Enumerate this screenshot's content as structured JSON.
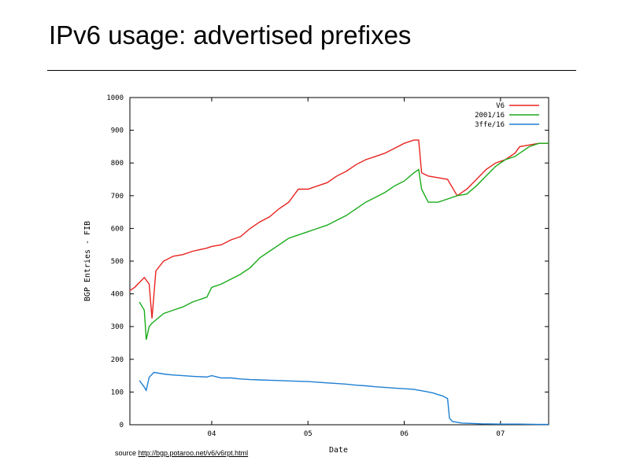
{
  "slide": {
    "title": "IPv6 usage: advertised prefixes",
    "source_prefix": "source ",
    "source_url": "http://bgp.potaroo.net/v6/v6rpt.html"
  },
  "chart_data": {
    "type": "line",
    "xlabel": "Date",
    "ylabel": "BGP Entries - FIB",
    "ylim": [
      0,
      1000
    ],
    "y_ticks": [
      0,
      100,
      200,
      300,
      400,
      500,
      600,
      700,
      800,
      900,
      1000
    ],
    "y_tick_labels": [
      "0",
      "100",
      "200",
      "300",
      "400",
      "500",
      "600",
      "700",
      "800",
      "900",
      "1000"
    ],
    "xlim": [
      2003.15,
      2007.5
    ],
    "x_ticks": [
      2004,
      2005,
      2006,
      2007
    ],
    "x_tick_labels": [
      "04",
      "05",
      "06",
      "07"
    ],
    "grid": false,
    "legend_position": "top-right",
    "colors": {
      "V6": "#e8231f",
      "2001/16": "#1aab1a",
      "3ffe/16": "#1e7fd2"
    },
    "series": [
      {
        "name": "V6",
        "x": [
          2003.15,
          2003.2,
          2003.3,
          2003.35,
          2003.38,
          2003.42,
          2003.5,
          2003.6,
          2003.7,
          2003.8,
          2003.95,
          2004.0,
          2004.1,
          2004.2,
          2004.3,
          2004.4,
          2004.5,
          2004.6,
          2004.7,
          2004.8,
          2004.85,
          2004.9,
          2005.0,
          2005.1,
          2005.2,
          2005.3,
          2005.4,
          2005.5,
          2005.6,
          2005.7,
          2005.8,
          2005.9,
          2006.0,
          2006.1,
          2006.15,
          2006.18,
          2006.25,
          2006.35,
          2006.45,
          2006.55,
          2006.65,
          2006.75,
          2006.85,
          2006.95,
          2007.05,
          2007.15,
          2007.2,
          2007.3,
          2007.4,
          2007.5
        ],
        "y": [
          410,
          420,
          450,
          430,
          325,
          470,
          500,
          515,
          520,
          530,
          540,
          545,
          550,
          565,
          575,
          600,
          620,
          635,
          660,
          680,
          700,
          720,
          720,
          730,
          740,
          760,
          775,
          795,
          810,
          820,
          830,
          845,
          860,
          870,
          870,
          770,
          760,
          755,
          750,
          700,
          720,
          750,
          780,
          800,
          810,
          830,
          850,
          855,
          860,
          860
        ]
      },
      {
        "name": "2001/16",
        "x": [
          2003.25,
          2003.3,
          2003.32,
          2003.35,
          2003.38,
          2003.42,
          2003.5,
          2003.6,
          2003.7,
          2003.8,
          2003.95,
          2004.0,
          2004.1,
          2004.2,
          2004.3,
          2004.4,
          2004.5,
          2004.6,
          2004.7,
          2004.8,
          2004.9,
          2005.0,
          2005.1,
          2005.2,
          2005.3,
          2005.4,
          2005.5,
          2005.6,
          2005.7,
          2005.8,
          2005.9,
          2006.0,
          2006.1,
          2006.15,
          2006.18,
          2006.25,
          2006.35,
          2006.45,
          2006.55,
          2006.65,
          2006.75,
          2006.85,
          2006.95,
          2007.05,
          2007.15,
          2007.2,
          2007.3,
          2007.4,
          2007.5
        ],
        "y": [
          375,
          350,
          260,
          300,
          310,
          320,
          340,
          350,
          360,
          375,
          390,
          420,
          430,
          445,
          460,
          480,
          510,
          530,
          550,
          570,
          580,
          590,
          600,
          610,
          625,
          640,
          660,
          680,
          695,
          710,
          730,
          745,
          770,
          780,
          720,
          680,
          680,
          690,
          700,
          705,
          730,
          760,
          790,
          810,
          820,
          830,
          850,
          860,
          860
        ]
      },
      {
        "name": "3ffe/16",
        "x": [
          2003.25,
          2003.3,
          2003.32,
          2003.35,
          2003.4,
          2003.5,
          2003.6,
          2003.7,
          2003.8,
          2003.95,
          2004.0,
          2004.1,
          2004.2,
          2004.3,
          2004.4,
          2004.5,
          2004.6,
          2004.7,
          2004.8,
          2004.9,
          2005.0,
          2005.1,
          2005.2,
          2005.3,
          2005.4,
          2005.5,
          2005.6,
          2005.7,
          2005.8,
          2005.9,
          2006.0,
          2006.1,
          2006.2,
          2006.3,
          2006.35,
          2006.4,
          2006.45,
          2006.47,
          2006.5,
          2006.6,
          2006.7,
          2006.8,
          2007.0,
          2007.2,
          2007.4,
          2007.5
        ],
        "y": [
          135,
          115,
          105,
          145,
          160,
          155,
          152,
          150,
          148,
          146,
          150,
          143,
          143,
          140,
          138,
          137,
          136,
          135,
          134,
          133,
          132,
          130,
          128,
          126,
          124,
          121,
          119,
          116,
          114,
          112,
          110,
          108,
          103,
          97,
          92,
          88,
          80,
          20,
          10,
          5,
          4,
          3,
          2,
          2,
          1,
          1
        ]
      }
    ]
  }
}
